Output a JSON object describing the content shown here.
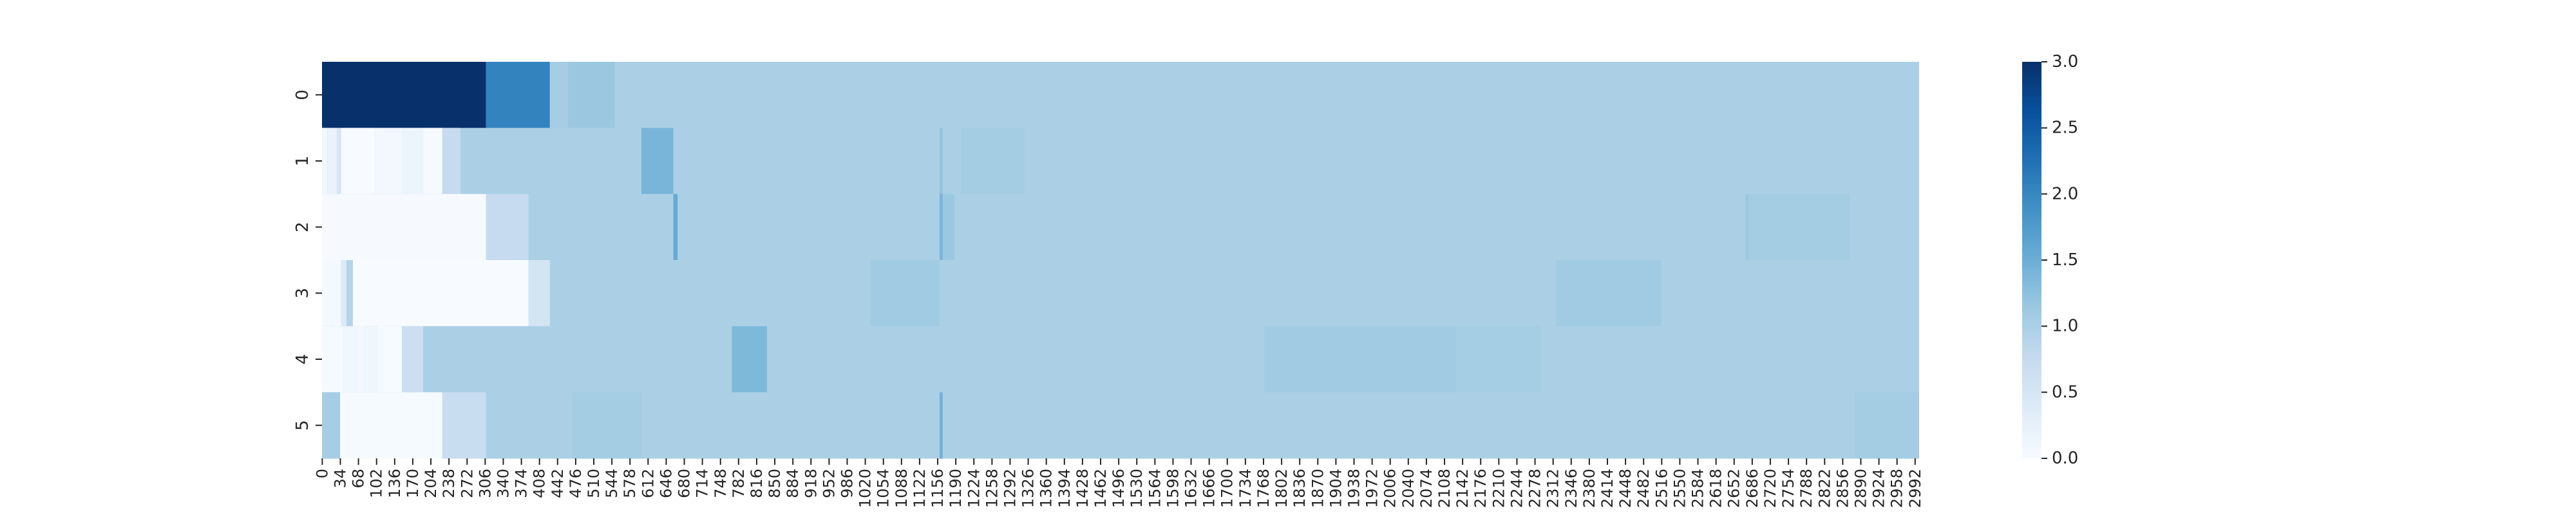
{
  "chart_data": {
    "type": "heatmap",
    "title": "",
    "xlabel": "",
    "ylabel": "",
    "x_range": [
      0,
      3000
    ],
    "x_tick_step": 34,
    "y_labels": [
      "0",
      "1",
      "2",
      "3",
      "4",
      "5"
    ],
    "colormap": "Blues",
    "colorbar": {
      "range": [
        0,
        3
      ],
      "ticks": [
        "0.0",
        "0.5",
        "1.0",
        "1.5",
        "2.0",
        "2.5",
        "3.0"
      ]
    },
    "rows": [
      {
        "label": "0",
        "default": 1.0,
        "segments": [
          {
            "from": 0,
            "to": 308,
            "value": 3.0
          },
          {
            "from": 308,
            "to": 428,
            "value": 2.05
          },
          {
            "from": 428,
            "to": 462,
            "value": 1.05
          },
          {
            "from": 462,
            "to": 550,
            "value": 1.15
          }
        ]
      },
      {
        "label": "1",
        "default": 1.0,
        "segments": [
          {
            "from": 0,
            "to": 10,
            "value": 0.1
          },
          {
            "from": 10,
            "to": 28,
            "value": 0.2
          },
          {
            "from": 28,
            "to": 36,
            "value": 0.5
          },
          {
            "from": 36,
            "to": 100,
            "value": 0.0
          },
          {
            "from": 100,
            "to": 150,
            "value": 0.07
          },
          {
            "from": 150,
            "to": 190,
            "value": 0.15
          },
          {
            "from": 190,
            "to": 226,
            "value": 0.02
          },
          {
            "from": 226,
            "to": 260,
            "value": 0.75
          },
          {
            "from": 600,
            "to": 660,
            "value": 1.4
          },
          {
            "from": 1160,
            "to": 1166,
            "value": 1.2
          },
          {
            "from": 1200,
            "to": 1320,
            "value": 1.07
          }
        ]
      },
      {
        "label": "2",
        "default": 1.0,
        "segments": [
          {
            "from": 0,
            "to": 308,
            "value": 0.02
          },
          {
            "from": 308,
            "to": 388,
            "value": 0.75
          },
          {
            "from": 660,
            "to": 668,
            "value": 1.55
          },
          {
            "from": 1160,
            "to": 1166,
            "value": 1.4
          },
          {
            "from": 1166,
            "to": 1188,
            "value": 1.15
          },
          {
            "from": 2674,
            "to": 2680,
            "value": 1.15
          },
          {
            "from": 2680,
            "to": 2870,
            "value": 1.07
          }
        ]
      },
      {
        "label": "3",
        "default": 1.0,
        "segments": [
          {
            "from": 0,
            "to": 36,
            "value": 0.05
          },
          {
            "from": 36,
            "to": 46,
            "value": 0.4
          },
          {
            "from": 46,
            "to": 58,
            "value": 0.9
          },
          {
            "from": 58,
            "to": 388,
            "value": 0.0
          },
          {
            "from": 388,
            "to": 428,
            "value": 0.55
          },
          {
            "from": 1030,
            "to": 1160,
            "value": 1.1
          },
          {
            "from": 2318,
            "to": 2516,
            "value": 1.1
          }
        ]
      },
      {
        "label": "4",
        "default": 1.0,
        "segments": [
          {
            "from": 0,
            "to": 40,
            "value": 0.03
          },
          {
            "from": 40,
            "to": 64,
            "value": 0.1
          },
          {
            "from": 64,
            "to": 80,
            "value": 0.06
          },
          {
            "from": 80,
            "to": 104,
            "value": 0.12
          },
          {
            "from": 104,
            "to": 150,
            "value": 0.01
          },
          {
            "from": 150,
            "to": 190,
            "value": 0.65
          },
          {
            "from": 770,
            "to": 836,
            "value": 1.35
          },
          {
            "from": 1770,
            "to": 2130,
            "value": 1.1
          },
          {
            "from": 2130,
            "to": 2290,
            "value": 1.06
          }
        ]
      },
      {
        "label": "5",
        "default": 1.0,
        "segments": [
          {
            "from": 0,
            "to": 34,
            "value": 1.05
          },
          {
            "from": 34,
            "to": 226,
            "value": 0.03
          },
          {
            "from": 226,
            "to": 308,
            "value": 0.7
          },
          {
            "from": 470,
            "to": 600,
            "value": 1.07
          },
          {
            "from": 1160,
            "to": 1166,
            "value": 1.45
          },
          {
            "from": 2880,
            "to": 3000,
            "value": 1.07
          }
        ]
      }
    ]
  }
}
